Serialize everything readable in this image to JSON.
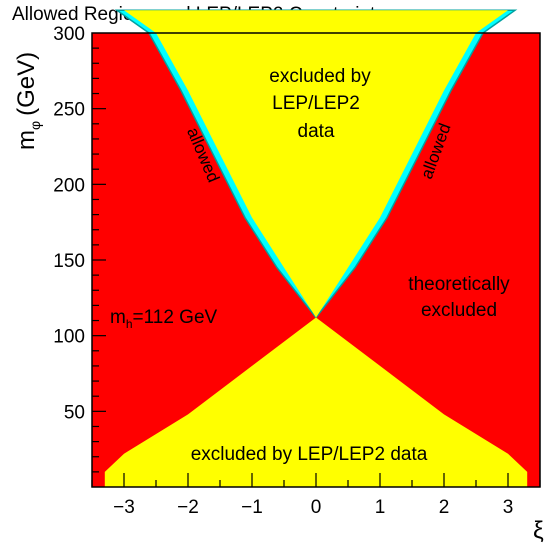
{
  "chart_data": {
    "type": "area",
    "title": "Allowed Regions and LEP/LEP2 Constraints",
    "xlabel": "ξ",
    "ylabel": "m_φ (GeV)",
    "ylabel_main": "m",
    "ylabel_sub": "φ",
    "ylabel_unit": "(GeV)",
    "xlim": [
      -3.5,
      3.5
    ],
    "ylim": [
      0,
      300
    ],
    "x_ticks": [
      -3,
      -2,
      -1,
      0,
      1,
      2,
      3
    ],
    "x_tick_labels": [
      "−3",
      "−2",
      "−1",
      "0",
      "1",
      "2",
      "3"
    ],
    "y_ticks": [
      50,
      100,
      150,
      200,
      250,
      300
    ],
    "y_tick_labels": [
      "50",
      "100",
      "150",
      "200",
      "250",
      "300"
    ],
    "grid": false,
    "colors": {
      "theoretically_excluded": "#ff0000",
      "excluded_by_lep": "#ffff00",
      "allowed": "#00ffff",
      "allowed_edge": "#00a0a0"
    },
    "upper_boundary": {
      "x": [
        -3.0,
        -2.5,
        -2.0,
        -1.5,
        -1.0,
        -0.5,
        0.0,
        0.5,
        1.0,
        1.5,
        2.0,
        2.5,
        3.0
      ],
      "y": [
        315,
        300,
        262,
        220,
        178,
        145,
        112,
        145,
        178,
        220,
        262,
        300,
        315
      ]
    },
    "lower_boundary": {
      "x": [
        -3.3,
        -3.0,
        -2.0,
        -1.0,
        0.0,
        1.0,
        2.0,
        3.0,
        3.3
      ],
      "y": [
        10,
        22,
        48,
        80,
        112,
        80,
        48,
        22,
        10
      ]
    },
    "annotations": {
      "upper_region": [
        "excluded by",
        "LEP/LEP2",
        "data"
      ],
      "lower_region": "excluded by LEP/LEP2 data",
      "right_region": [
        "theoretically",
        "excluded"
      ],
      "left_region_main": "m",
      "left_region_sub": "h",
      "left_region_rest": "=112 GeV",
      "allowed_left": "allowed",
      "allowed_right": "allowed"
    }
  }
}
